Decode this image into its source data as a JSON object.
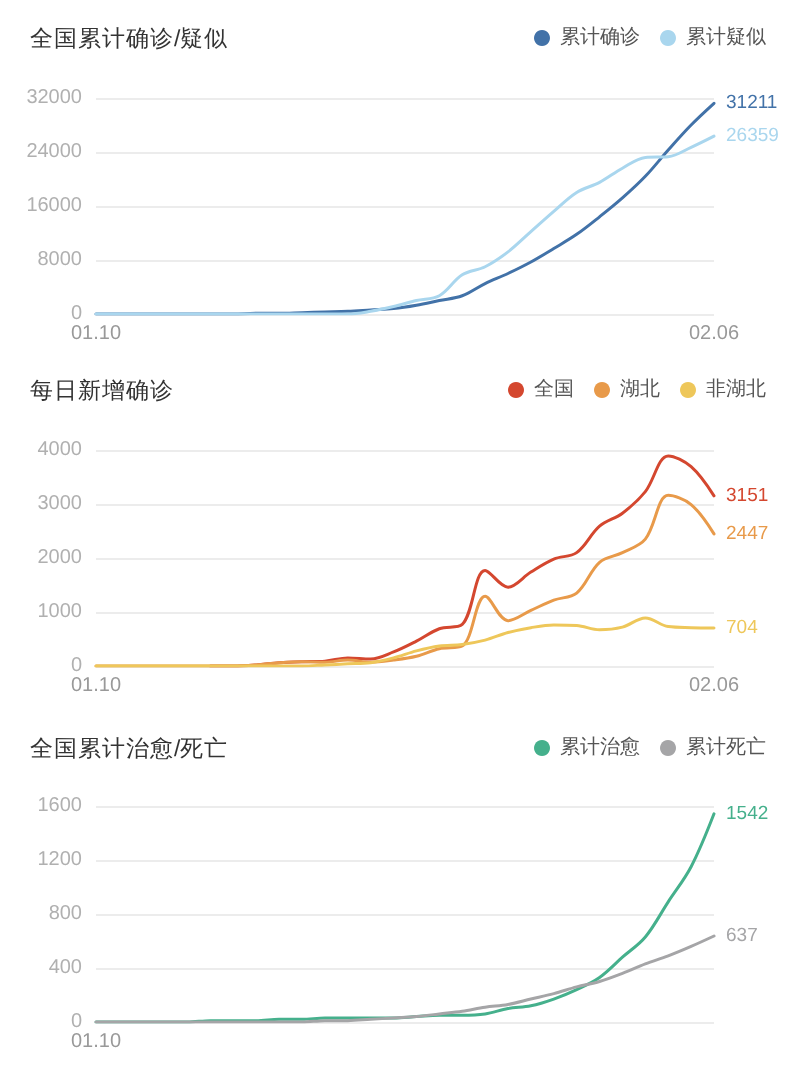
{
  "chart_data": [
    {
      "type": "line",
      "title": "全国累计确诊/疑似",
      "categories": [
        "01.10",
        null,
        null,
        null,
        null,
        null,
        null,
        null,
        null,
        null,
        null,
        null,
        null,
        null,
        null,
        null,
        null,
        null,
        null,
        null,
        null,
        null,
        null,
        null,
        null,
        null,
        null,
        "02.06"
      ],
      "series": [
        {
          "name": "累计确诊",
          "color": "#4272a8",
          "values": [
            0,
            0,
            0,
            0,
            0,
            0,
            0,
            100,
            100,
            200,
            300,
            400,
            600,
            800,
            1300,
            2000,
            2700,
            4500,
            6000,
            7700,
            9700,
            11800,
            14400,
            17200,
            20400,
            24300,
            28000,
            31211
          ],
          "value_labels": [
            null,
            null,
            null,
            null,
            null,
            null,
            null,
            null,
            null,
            null,
            null,
            null,
            null,
            null,
            null,
            null,
            null,
            null,
            null,
            null,
            null,
            null,
            null,
            null,
            null,
            null,
            null,
            "31211"
          ]
        },
        {
          "name": "累计疑似",
          "color": "#a9d6ee",
          "values": [
            0,
            0,
            0,
            0,
            0,
            0,
            0,
            0,
            0,
            0,
            0,
            0,
            400,
            1100,
            2000,
            2700,
            5800,
            7000,
            9200,
            12200,
            15200,
            18000,
            19500,
            21600,
            23200,
            23300,
            24700,
            26359
          ],
          "value_labels": [
            null,
            null,
            null,
            null,
            null,
            null,
            null,
            null,
            null,
            null,
            null,
            null,
            null,
            null,
            null,
            null,
            null,
            null,
            null,
            null,
            null,
            null,
            null,
            null,
            null,
            null,
            null,
            "26359"
          ]
        }
      ],
      "ylim": [
        0,
        32000
      ],
      "yticks": [
        0,
        8000,
        16000,
        24000,
        32000
      ],
      "grid": "y",
      "legend": "top right"
    },
    {
      "type": "line",
      "title": "每日新增确诊",
      "categories": [
        "01.10",
        null,
        null,
        null,
        null,
        null,
        null,
        null,
        null,
        null,
        null,
        null,
        null,
        null,
        null,
        null,
        null,
        null,
        null,
        null,
        null,
        null,
        null,
        null,
        null,
        null,
        null,
        "02.06"
      ],
      "series": [
        {
          "name": "全国",
          "color": "#d4472f",
          "values": [
            null,
            null,
            null,
            null,
            null,
            0,
            0,
            20,
            60,
            80,
            90,
            150,
            130,
            260,
            460,
            690,
            770,
            1770,
            1460,
            1740,
            1980,
            2100,
            2590,
            2830,
            3230,
            3890,
            3690,
            3151
          ],
          "value_labels": [
            null,
            null,
            null,
            null,
            null,
            null,
            null,
            null,
            null,
            null,
            null,
            null,
            null,
            null,
            null,
            null,
            null,
            null,
            null,
            null,
            null,
            null,
            null,
            null,
            null,
            null,
            null,
            "3151"
          ]
        },
        {
          "name": "湖北",
          "color": "#e89a4a",
          "values": [
            0,
            0,
            0,
            0,
            0,
            0,
            0,
            20,
            60,
            80,
            70,
            110,
            70,
            110,
            180,
            320,
            370,
            1290,
            840,
            1030,
            1220,
            1350,
            1920,
            2100,
            2350,
            3160,
            2990,
            2447
          ],
          "value_labels": [
            null,
            null,
            null,
            null,
            null,
            null,
            null,
            null,
            null,
            null,
            null,
            null,
            null,
            null,
            null,
            null,
            null,
            null,
            null,
            null,
            null,
            null,
            null,
            null,
            null,
            null,
            null,
            "2447"
          ]
        },
        {
          "name": "非湖北",
          "color": "#eec75a",
          "values": [
            0,
            0,
            0,
            0,
            0,
            0,
            0,
            0,
            0,
            0,
            20,
            40,
            60,
            150,
            280,
            370,
            400,
            480,
            620,
            710,
            760,
            750,
            670,
            720,
            890,
            730,
            710,
            704
          ],
          "value_labels": [
            null,
            null,
            null,
            null,
            null,
            null,
            null,
            null,
            null,
            null,
            null,
            null,
            null,
            null,
            null,
            null,
            null,
            null,
            null,
            null,
            null,
            null,
            null,
            null,
            null,
            null,
            null,
            "704"
          ]
        }
      ],
      "ylim": [
        0,
        4000
      ],
      "yticks": [
        0,
        1000,
        2000,
        3000,
        4000
      ],
      "grid": "y",
      "legend": "top right"
    },
    {
      "type": "line",
      "title": "全国累计治愈/死亡",
      "categories": [
        "01.10",
        null,
        null,
        null,
        null,
        null,
        null,
        null,
        null,
        null,
        null,
        null,
        null,
        null,
        null,
        null,
        null,
        null,
        null,
        null,
        null,
        null,
        null,
        null,
        null,
        null,
        null,
        null
      ],
      "series": [
        {
          "name": "累计治愈",
          "color": "#45b08c",
          "values": [
            0,
            0,
            0,
            0,
            0,
            10,
            10,
            10,
            20,
            20,
            30,
            30,
            30,
            30,
            40,
            50,
            50,
            60,
            100,
            120,
            170,
            240,
            330,
            480,
            630,
            890,
            1150,
            1542
          ],
          "value_labels": [
            null,
            null,
            null,
            null,
            null,
            null,
            null,
            null,
            null,
            null,
            null,
            null,
            null,
            null,
            null,
            null,
            null,
            null,
            null,
            null,
            null,
            null,
            null,
            null,
            null,
            null,
            null,
            "1542"
          ]
        },
        {
          "name": "累计死亡",
          "color": "#a5a5a7",
          "values": [
            0,
            0,
            0,
            0,
            0,
            0,
            0,
            0,
            0,
            0,
            10,
            10,
            20,
            30,
            40,
            60,
            80,
            110,
            130,
            170,
            210,
            260,
            300,
            360,
            430,
            490,
            560,
            637
          ],
          "value_labels": [
            null,
            null,
            null,
            null,
            null,
            null,
            null,
            null,
            null,
            null,
            null,
            null,
            null,
            null,
            null,
            null,
            null,
            null,
            null,
            null,
            null,
            null,
            null,
            null,
            null,
            null,
            null,
            "637"
          ]
        }
      ],
      "ylim": [
        0,
        1600
      ],
      "yticks": [
        0,
        400,
        800,
        1200,
        1600
      ],
      "grid": "y",
      "legend": "top right"
    }
  ]
}
